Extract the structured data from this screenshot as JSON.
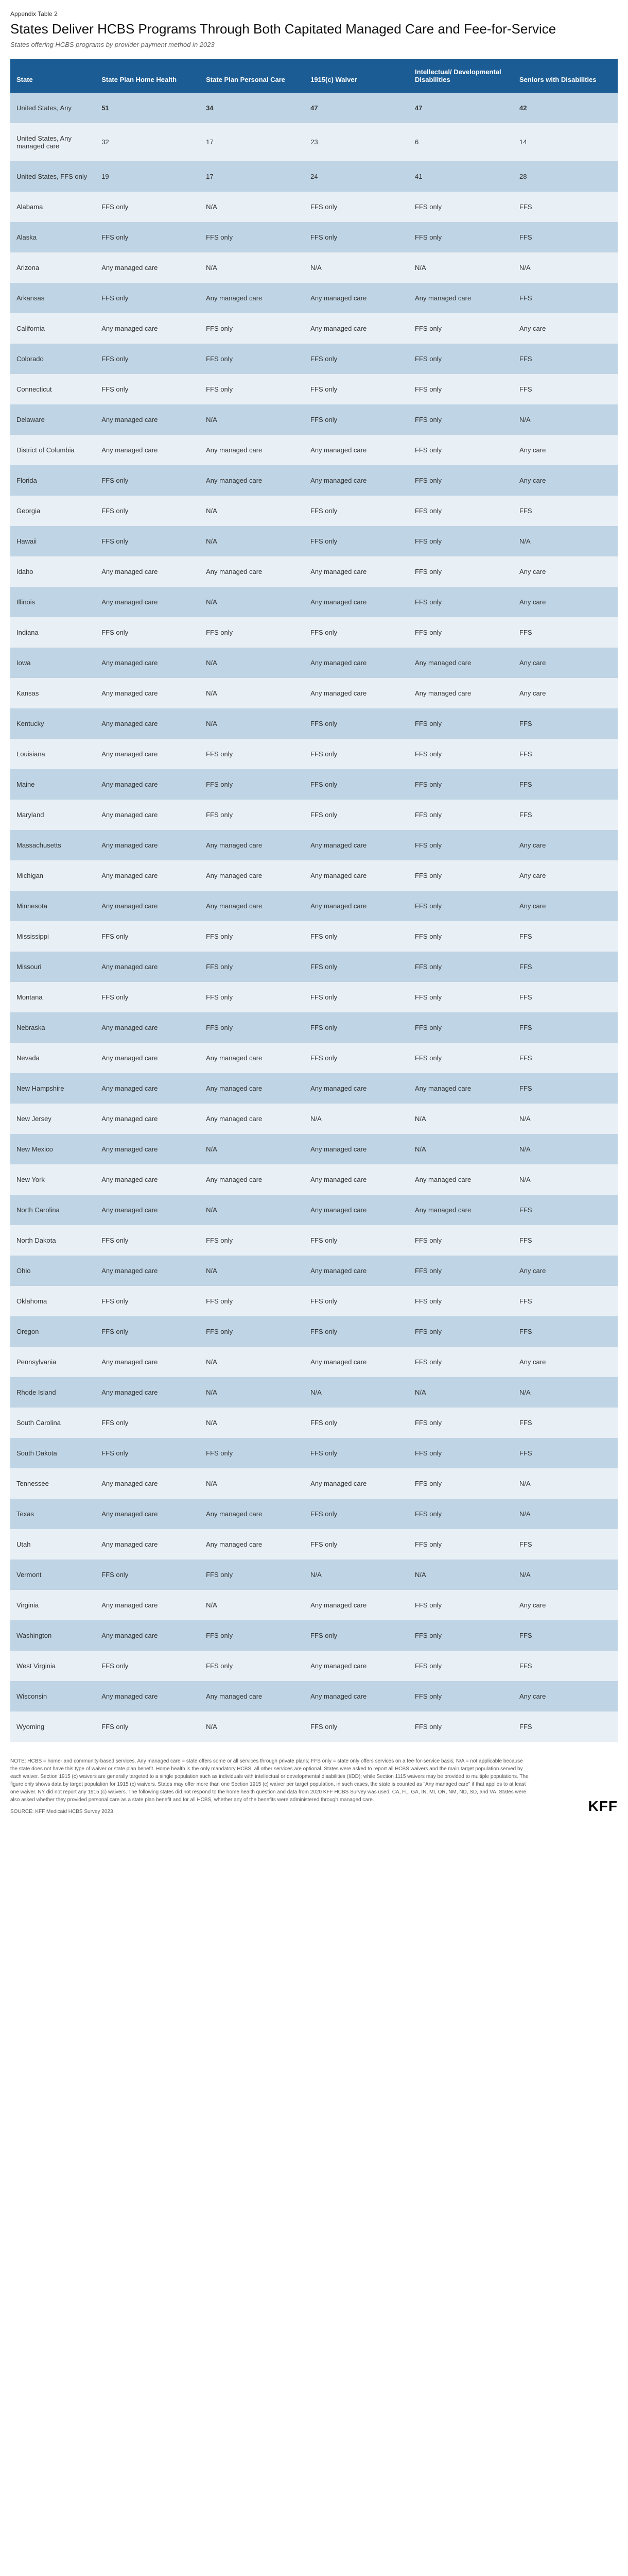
{
  "prelabel": "Appendix Table 2",
  "title": "States Deliver HCBS Programs Through Both Capitated Managed Care and Fee-for-Service",
  "subtitle": "States offering HCBS programs by provider payment method in 2023",
  "columns": [
    "State",
    "State Plan Home Health",
    "State Plan Personal Care",
    "1915(c) Waiver",
    "Intellectual/ Developmental Disabilities",
    "Seniors with Disabilities"
  ],
  "rows": [
    {
      "summary": true,
      "c": [
        "United States, Any",
        "51",
        "34",
        "47",
        "47",
        "42"
      ]
    },
    {
      "summary": false,
      "c": [
        "United States, Any managed care",
        "32",
        "17",
        "23",
        "6",
        "14"
      ]
    },
    {
      "summary": false,
      "c": [
        "United States, FFS only",
        "19",
        "17",
        "24",
        "41",
        "28"
      ]
    },
    {
      "summary": false,
      "c": [
        "Alabama",
        "FFS only",
        "N/A",
        "FFS only",
        "FFS only",
        "FFS"
      ]
    },
    {
      "summary": false,
      "c": [
        "Alaska",
        "FFS only",
        "FFS only",
        "FFS only",
        "FFS only",
        "FFS"
      ]
    },
    {
      "summary": false,
      "c": [
        "Arizona",
        "Any managed care",
        "N/A",
        "N/A",
        "N/A",
        "N/A"
      ]
    },
    {
      "summary": false,
      "c": [
        "Arkansas",
        "FFS only",
        "Any managed care",
        "Any managed care",
        "Any managed care",
        "FFS"
      ]
    },
    {
      "summary": false,
      "c": [
        "California",
        "Any managed care",
        "FFS only",
        "Any managed care",
        "FFS only",
        "Any care"
      ]
    },
    {
      "summary": false,
      "c": [
        "Colorado",
        "FFS only",
        "FFS only",
        "FFS only",
        "FFS only",
        "FFS"
      ]
    },
    {
      "summary": false,
      "c": [
        "Connecticut",
        "FFS only",
        "FFS only",
        "FFS only",
        "FFS only",
        "FFS"
      ]
    },
    {
      "summary": false,
      "c": [
        "Delaware",
        "Any managed care",
        "N/A",
        "FFS only",
        "FFS only",
        "N/A"
      ]
    },
    {
      "summary": false,
      "c": [
        "District of Columbia",
        "Any managed care",
        "Any managed care",
        "Any managed care",
        "FFS only",
        "Any care"
      ]
    },
    {
      "summary": false,
      "c": [
        "Florida",
        "FFS only",
        "Any managed care",
        "Any managed care",
        "FFS only",
        "Any care"
      ]
    },
    {
      "summary": false,
      "c": [
        "Georgia",
        "FFS only",
        "N/A",
        "FFS only",
        "FFS only",
        "FFS"
      ]
    },
    {
      "summary": false,
      "c": [
        "Hawaii",
        "FFS only",
        "N/A",
        "FFS only",
        "FFS only",
        "N/A"
      ]
    },
    {
      "summary": false,
      "c": [
        "Idaho",
        "Any managed care",
        "Any managed care",
        "Any managed care",
        "FFS only",
        "Any care"
      ]
    },
    {
      "summary": false,
      "c": [
        "Illinois",
        "Any managed care",
        "N/A",
        "Any managed care",
        "FFS only",
        "Any care"
      ]
    },
    {
      "summary": false,
      "c": [
        "Indiana",
        "FFS only",
        "FFS only",
        "FFS only",
        "FFS only",
        "FFS"
      ]
    },
    {
      "summary": false,
      "c": [
        "Iowa",
        "Any managed care",
        "N/A",
        "Any managed care",
        "Any managed care",
        "Any care"
      ]
    },
    {
      "summary": false,
      "c": [
        "Kansas",
        "Any managed care",
        "N/A",
        "Any managed care",
        "Any managed care",
        "Any care"
      ]
    },
    {
      "summary": false,
      "c": [
        "Kentucky",
        "Any managed care",
        "N/A",
        "FFS only",
        "FFS only",
        "FFS"
      ]
    },
    {
      "summary": false,
      "c": [
        "Louisiana",
        "Any managed care",
        "FFS only",
        "FFS only",
        "FFS only",
        "FFS"
      ]
    },
    {
      "summary": false,
      "c": [
        "Maine",
        "Any managed care",
        "FFS only",
        "FFS only",
        "FFS only",
        "FFS"
      ]
    },
    {
      "summary": false,
      "c": [
        "Maryland",
        "Any managed care",
        "FFS only",
        "FFS only",
        "FFS only",
        "FFS"
      ]
    },
    {
      "summary": false,
      "c": [
        "Massachusetts",
        "Any managed care",
        "Any managed care",
        "Any managed care",
        "FFS only",
        "Any care"
      ]
    },
    {
      "summary": false,
      "c": [
        "Michigan",
        "Any managed care",
        "Any managed care",
        "Any managed care",
        "FFS only",
        "Any care"
      ]
    },
    {
      "summary": false,
      "c": [
        "Minnesota",
        "Any managed care",
        "Any managed care",
        "Any managed care",
        "FFS only",
        "Any care"
      ]
    },
    {
      "summary": false,
      "c": [
        "Mississippi",
        "FFS only",
        "FFS only",
        "FFS only",
        "FFS only",
        "FFS"
      ]
    },
    {
      "summary": false,
      "c": [
        "Missouri",
        "Any managed care",
        "FFS only",
        "FFS only",
        "FFS only",
        "FFS"
      ]
    },
    {
      "summary": false,
      "c": [
        "Montana",
        "FFS only",
        "FFS only",
        "FFS only",
        "FFS only",
        "FFS"
      ]
    },
    {
      "summary": false,
      "c": [
        "Nebraska",
        "Any managed care",
        "FFS only",
        "FFS only",
        "FFS only",
        "FFS"
      ]
    },
    {
      "summary": false,
      "c": [
        "Nevada",
        "Any managed care",
        "Any managed care",
        "FFS only",
        "FFS only",
        "FFS"
      ]
    },
    {
      "summary": false,
      "c": [
        "New Hampshire",
        "Any managed care",
        "Any managed care",
        "Any managed care",
        "Any managed care",
        "FFS"
      ]
    },
    {
      "summary": false,
      "c": [
        "New Jersey",
        "Any managed care",
        "Any managed care",
        "N/A",
        "N/A",
        "N/A"
      ]
    },
    {
      "summary": false,
      "c": [
        "New Mexico",
        "Any managed care",
        "N/A",
        "Any managed care",
        "N/A",
        "N/A"
      ]
    },
    {
      "summary": false,
      "c": [
        "New York",
        "Any managed care",
        "Any managed care",
        "Any managed care",
        "Any managed care",
        "N/A"
      ]
    },
    {
      "summary": false,
      "c": [
        "North Carolina",
        "Any managed care",
        "N/A",
        "Any managed care",
        "Any managed care",
        "FFS"
      ]
    },
    {
      "summary": false,
      "c": [
        "North Dakota",
        "FFS only",
        "FFS only",
        "FFS only",
        "FFS only",
        "FFS"
      ]
    },
    {
      "summary": false,
      "c": [
        "Ohio",
        "Any managed care",
        "N/A",
        "Any managed care",
        "FFS only",
        "Any care"
      ]
    },
    {
      "summary": false,
      "c": [
        "Oklahoma",
        "FFS only",
        "FFS only",
        "FFS only",
        "FFS only",
        "FFS"
      ]
    },
    {
      "summary": false,
      "c": [
        "Oregon",
        "FFS only",
        "FFS only",
        "FFS only",
        "FFS only",
        "FFS"
      ]
    },
    {
      "summary": false,
      "c": [
        "Pennsylvania",
        "Any managed care",
        "N/A",
        "Any managed care",
        "FFS only",
        "Any care"
      ]
    },
    {
      "summary": false,
      "c": [
        "Rhode Island",
        "Any managed care",
        "N/A",
        "N/A",
        "N/A",
        "N/A"
      ]
    },
    {
      "summary": false,
      "c": [
        "South Carolina",
        "FFS only",
        "N/A",
        "FFS only",
        "FFS only",
        "FFS"
      ]
    },
    {
      "summary": false,
      "c": [
        "South Dakota",
        "FFS only",
        "FFS only",
        "FFS only",
        "FFS only",
        "FFS"
      ]
    },
    {
      "summary": false,
      "c": [
        "Tennessee",
        "Any managed care",
        "N/A",
        "Any managed care",
        "FFS only",
        "N/A"
      ]
    },
    {
      "summary": false,
      "c": [
        "Texas",
        "Any managed care",
        "Any managed care",
        "FFS only",
        "FFS only",
        "N/A"
      ]
    },
    {
      "summary": false,
      "c": [
        "Utah",
        "Any managed care",
        "Any managed care",
        "FFS only",
        "FFS only",
        "FFS"
      ]
    },
    {
      "summary": false,
      "c": [
        "Vermont",
        "FFS only",
        "FFS only",
        "N/A",
        "N/A",
        "N/A"
      ]
    },
    {
      "summary": false,
      "c": [
        "Virginia",
        "Any managed care",
        "N/A",
        "Any managed care",
        "FFS only",
        "Any care"
      ]
    },
    {
      "summary": false,
      "c": [
        "Washington",
        "Any managed care",
        "FFS only",
        "FFS only",
        "FFS only",
        "FFS"
      ]
    },
    {
      "summary": false,
      "c": [
        "West Virginia",
        "FFS only",
        "FFS only",
        "Any managed care",
        "FFS only",
        "FFS"
      ]
    },
    {
      "summary": false,
      "c": [
        "Wisconsin",
        "Any managed care",
        "Any managed care",
        "Any managed care",
        "FFS only",
        "Any care"
      ]
    },
    {
      "summary": false,
      "c": [
        "Wyoming",
        "FFS only",
        "N/A",
        "FFS only",
        "FFS only",
        "FFS"
      ]
    }
  ],
  "footnote": "NOTE: HCBS = home- and community-based services. Any managed care = state offers some or all services through private plans; FFS only = state only offers services on a fee-for-service basis; N/A = not applicable because the state does not have this type of waiver or state plan benefit. Home health is the only mandatory HCBS, all other services are optional. States were asked to report all HCBS waivers and the main target population served by each waiver. Section 1915 (c) waivers are generally targeted to a single population such as individuals with intellectual or developmental disabilities (I/DD); while Section 1115 waivers may be provided to multiple populations. The figure only shows data by target population for 1915 (c) waivers. States may offer more than one Section 1915 (c) waiver per target population, in such cases, the state is counted as \"Any managed care\" if that applies to at least one waiver. NY did not report any 1915 (c) waivers. The following states did not respond to the home health question and data from 2020 KFF HCBS Survey was used: CA, FL, GA, IN, MI, OR, NM, ND, SD, and VA. States were also asked whether they provided personal care as a state plan benefit and for all HCBS, whether any of the benefits were administered through managed care.",
  "source": "SOURCE: KFF Medicaid HCBS Survey 2023",
  "logo": "KFF",
  "colors": {
    "header_bg": "#1b5c94",
    "header_fg": "#ffffff",
    "band_dark": "#bfd4e4",
    "band_light": "#e8eff5"
  }
}
